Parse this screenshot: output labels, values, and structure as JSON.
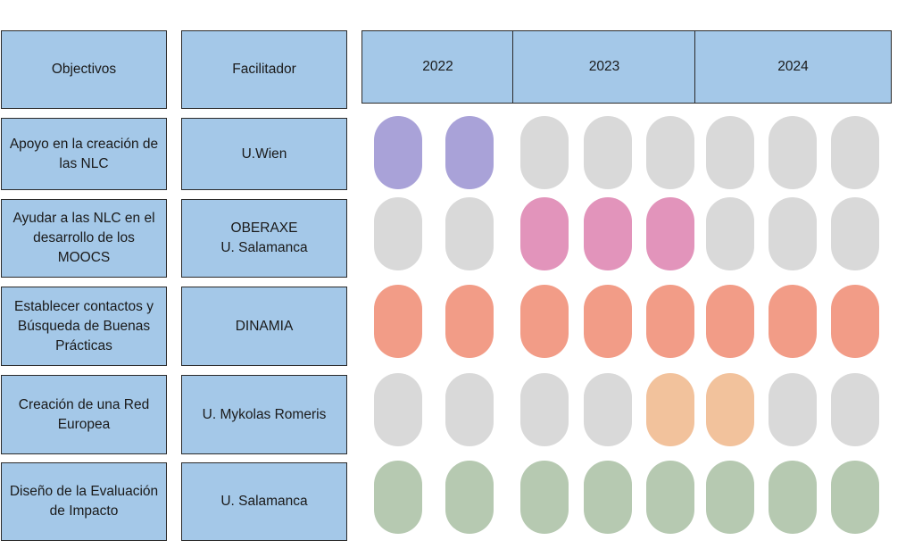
{
  "headers": {
    "objectives": "Objectivos",
    "facilitator": "Facilitador"
  },
  "years": [
    "2022",
    "2023",
    "2024"
  ],
  "colors": {
    "inactive": "#d9d9d9",
    "purple": "#a9a2d8",
    "pink": "#e294bb",
    "salmon": "#f29c87",
    "peach": "#f2c29c",
    "green": "#b6c9b1"
  },
  "rows": [
    {
      "objective": "Apoyo en la creación de\nlas NLC",
      "facilitator": "U.Wien",
      "periods": [
        "purple",
        "purple",
        "inactive",
        "inactive",
        "inactive",
        "inactive",
        "inactive",
        "inactive"
      ]
    },
    {
      "objective": "Ayudar a las  NLC en el\ndesarrollo de los\nMOOCS",
      "facilitator": "OBERAXE\nU. Salamanca",
      "periods": [
        "inactive",
        "inactive",
        "pink",
        "pink",
        "pink",
        "inactive",
        "inactive",
        "inactive"
      ]
    },
    {
      "objective": "Establecer contactos y\nBúsqueda de Buenas\nPrácticas",
      "facilitator": "DINAMIA",
      "periods": [
        "salmon",
        "salmon",
        "salmon",
        "salmon",
        "salmon",
        "salmon",
        "salmon",
        "salmon"
      ]
    },
    {
      "objective": "Creación de una Red\nEuropea",
      "facilitator": "U. Mykolas Romeris",
      "periods": [
        "inactive",
        "inactive",
        "inactive",
        "inactive",
        "peach",
        "peach",
        "inactive",
        "inactive"
      ]
    },
    {
      "objective": "Diseño de la Evaluación\nde Impacto",
      "facilitator": "U. Salamanca",
      "periods": [
        "green",
        "green",
        "green",
        "green",
        "green",
        "green",
        "green",
        "green"
      ]
    }
  ]
}
